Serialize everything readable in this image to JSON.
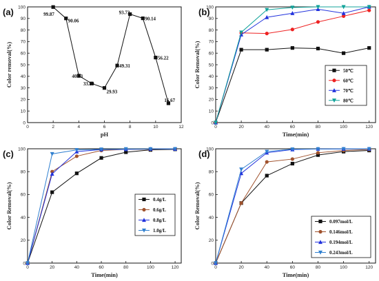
{
  "chart_data": [
    {
      "type": "line",
      "panel_label": "(a)",
      "xlabel": "pH",
      "ylabel": "Color removal(%)",
      "xlim": [
        0,
        12
      ],
      "ylim": [
        0,
        100
      ],
      "xticks": [
        0,
        2,
        4,
        6,
        8,
        10,
        12
      ],
      "yticks": [
        0,
        10,
        20,
        30,
        40,
        50,
        60,
        70,
        80,
        90,
        100
      ],
      "series": [
        {
          "color": "#111111",
          "marker": "square",
          "x": [
            2,
            3,
            4,
            5,
            6,
            7,
            8,
            9,
            10,
            11
          ],
          "values": [
            99.87,
            90.06,
            40.53,
            33.8,
            29.93,
            49.31,
            93.73,
            90.14,
            56.22,
            16.67
          ]
        }
      ],
      "data_labels": [
        "99.87",
        "90.06",
        "40.53",
        "33.80",
        "29.93",
        "49.31",
        "93.73",
        "90.14",
        "56.22",
        "16.67"
      ],
      "legend": []
    },
    {
      "type": "line",
      "panel_label": "(b)",
      "xlabel": "Time(min)",
      "ylabel": "Color Removal(%)",
      "xlim": [
        0,
        125
      ],
      "ylim": [
        0,
        100
      ],
      "xticks": [
        0,
        20,
        40,
        60,
        80,
        100,
        120
      ],
      "yticks": [
        0,
        10,
        20,
        30,
        40,
        50,
        60,
        70,
        80,
        90,
        100
      ],
      "legend_position": "center-right",
      "legend": [
        "50℃",
        "60℃",
        "70℃",
        "80℃"
      ],
      "series": [
        {
          "name": "50℃",
          "color": "#111111",
          "marker": "square",
          "x": [
            0,
            20,
            40,
            60,
            80,
            100,
            120
          ],
          "values": [
            0,
            63,
            63,
            64.5,
            64,
            60,
            64.5
          ]
        },
        {
          "name": "60℃",
          "color": "#ee2222",
          "marker": "circle",
          "x": [
            0,
            20,
            40,
            60,
            80,
            100,
            120
          ],
          "values": [
            0,
            77.5,
            77,
            80.5,
            87,
            92,
            97
          ]
        },
        {
          "name": "70℃",
          "color": "#2233dd",
          "marker": "triangle",
          "x": [
            0,
            20,
            40,
            60,
            80,
            100,
            120
          ],
          "values": [
            0,
            76,
            91,
            94.5,
            98,
            94.5,
            100
          ]
        },
        {
          "name": "80℃",
          "color": "#11a39a",
          "marker": "triangle-down",
          "x": [
            0,
            20,
            40,
            60,
            80,
            100,
            120
          ],
          "values": [
            0,
            78,
            97.5,
            99.5,
            100,
            100,
            100
          ]
        }
      ]
    },
    {
      "type": "line",
      "panel_label": "(c)",
      "xlabel": "Time(min)",
      "ylabel": "Color Removal(%)",
      "xlim": [
        0,
        125
      ],
      "ylim": [
        0,
        100
      ],
      "xticks": [
        0,
        20,
        40,
        60,
        80,
        100,
        120
      ],
      "yticks": [
        0,
        20,
        40,
        60,
        80,
        100
      ],
      "legend_position": "center-right",
      "legend": [
        "0.4g/L",
        "0.6g/L",
        "0.8g/L",
        "1.0g/L"
      ],
      "series": [
        {
          "name": "0.4g/L",
          "color": "#111111",
          "marker": "square",
          "x": [
            0,
            20,
            40,
            60,
            80,
            100,
            120
          ],
          "values": [
            0,
            62,
            78.5,
            92,
            97,
            99,
            99.5
          ]
        },
        {
          "name": "0.6g/L",
          "color": "#a0522d",
          "marker": "circle",
          "x": [
            0,
            20,
            40,
            60,
            80,
            100,
            120
          ],
          "values": [
            0,
            80,
            93.5,
            98.5,
            99.5,
            99.5,
            99.8
          ]
        },
        {
          "name": "0.8g/L",
          "color": "#2233dd",
          "marker": "triangle",
          "x": [
            0,
            20,
            40,
            60,
            80,
            100,
            120
          ],
          "values": [
            0,
            78,
            97.5,
            99.3,
            99.5,
            99.8,
            99.8
          ]
        },
        {
          "name": "1.0g/L",
          "color": "#2f7fd0",
          "marker": "triangle-down",
          "x": [
            0,
            20,
            40,
            60,
            80,
            100,
            120
          ],
          "values": [
            0,
            95.5,
            99,
            99.5,
            99.8,
            99.8,
            99.9
          ]
        }
      ]
    },
    {
      "type": "line",
      "panel_label": "(d)",
      "xlabel": "Time(min)",
      "ylabel": "Color Removal(%)",
      "xlim": [
        0,
        125
      ],
      "ylim": [
        0,
        100
      ],
      "xticks": [
        0,
        20,
        40,
        60,
        80,
        100,
        120
      ],
      "yticks": [
        0,
        20,
        40,
        60,
        80,
        100
      ],
      "legend_position": "bottom-right",
      "legend": [
        "0.097mol/L",
        "0.146mol/L",
        "0.194mol/L",
        "0.243mol/L"
      ],
      "series": [
        {
          "name": "0.097mol/L",
          "color": "#111111",
          "marker": "square",
          "x": [
            0,
            20,
            40,
            60,
            80,
            100,
            120
          ],
          "values": [
            0,
            52.5,
            76.5,
            87,
            94.5,
            97.5,
            98.5
          ]
        },
        {
          "name": "0.146mol/L",
          "color": "#a0522d",
          "marker": "circle",
          "x": [
            0,
            20,
            40,
            60,
            80,
            100,
            120
          ],
          "values": [
            0,
            52.5,
            88.5,
            91,
            96.5,
            98.5,
            99.3
          ]
        },
        {
          "name": "0.194mol/L",
          "color": "#2233dd",
          "marker": "triangle",
          "x": [
            0,
            20,
            40,
            60,
            80,
            100,
            120
          ],
          "values": [
            0,
            78.5,
            96.5,
            99.3,
            99.8,
            99.8,
            99.9
          ]
        },
        {
          "name": "0.243mol/L",
          "color": "#2f7fd0",
          "marker": "triangle-down",
          "x": [
            0,
            20,
            40,
            60,
            80,
            100,
            120
          ],
          "values": [
            0,
            82,
            97.5,
            99.6,
            99.8,
            99.9,
            99.9
          ]
        }
      ]
    }
  ]
}
